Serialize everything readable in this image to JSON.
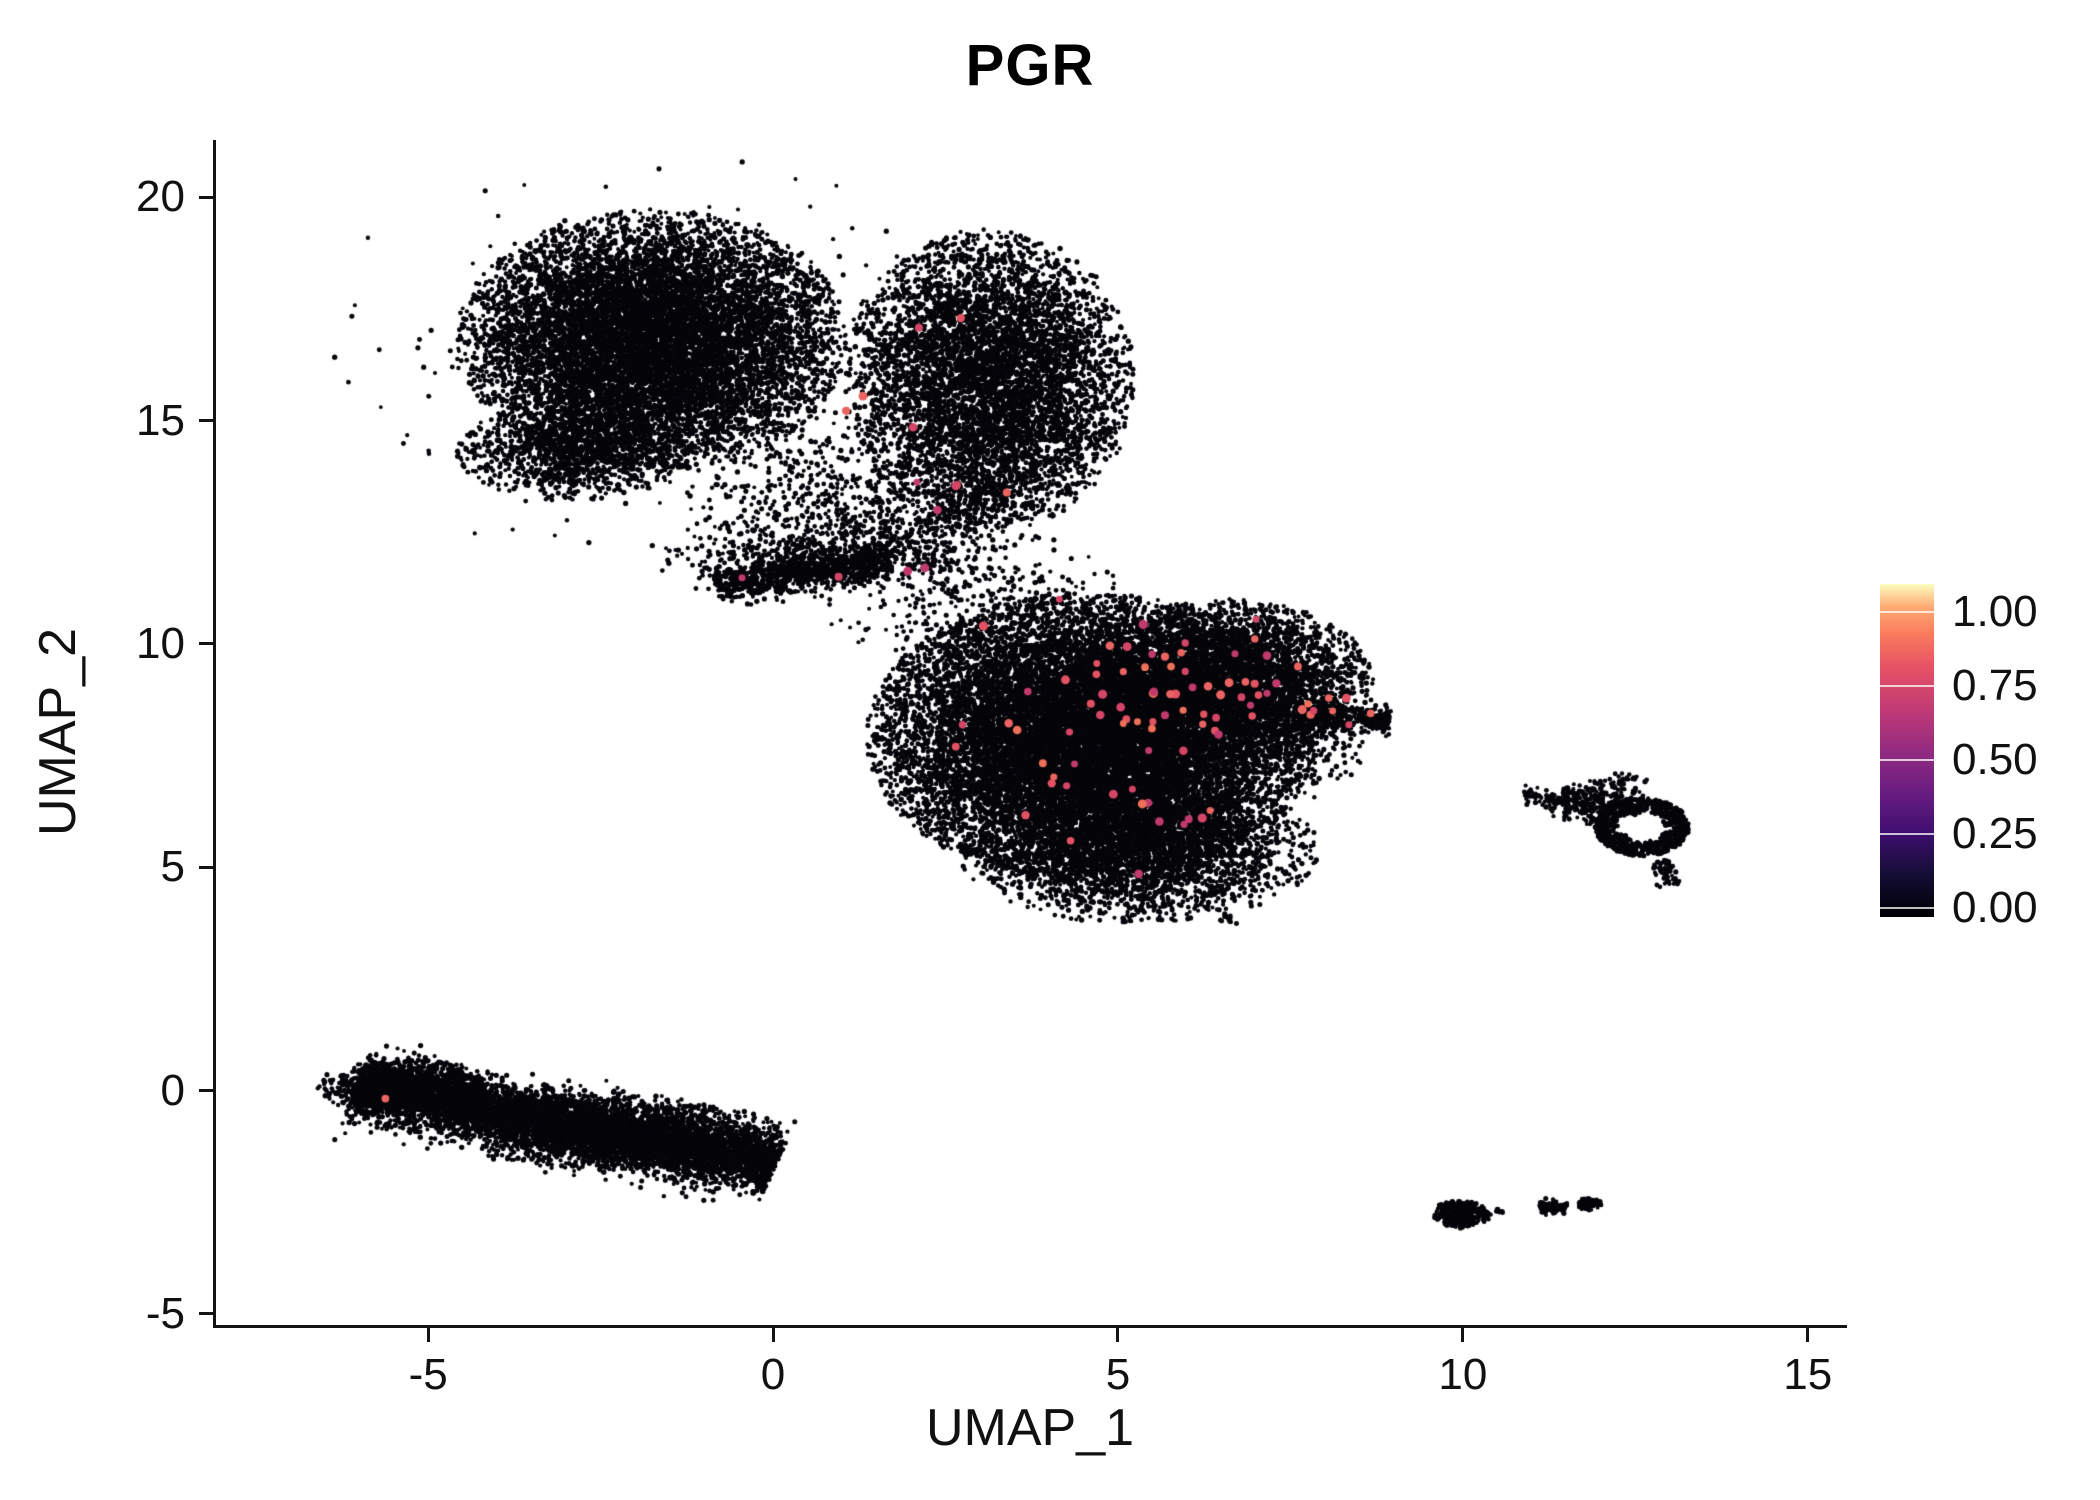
{
  "chart_data": {
    "type": "scatter",
    "title": "PGR",
    "xlabel": "UMAP_1",
    "ylabel": "UMAP_2",
    "xlim": [
      -8.09,
      15.54
    ],
    "ylim": [
      -5.25,
      21.28
    ],
    "x_ticks": [
      -5,
      0,
      5,
      10,
      15
    ],
    "y_ticks": [
      -5,
      0,
      5,
      10,
      15,
      20
    ],
    "grid": false,
    "n_points_approx": 53000,
    "note": "UMAP feature plot of PGR expression: nearly all cells have ~0 expression (black); sparse expressing cells (pink, ~0.5-0.8) are concentrated in the central cluster.",
    "colors": {
      "zero": "#05050a",
      "expressing_palette": [
        "#c13a6d",
        "#d44568",
        "#e25263",
        "#ea6461",
        "#ef7058"
      ]
    },
    "legend": {
      "type": "colorbar",
      "ticks": [
        {
          "label": "1.00",
          "value": 1.0
        },
        {
          "label": "0.75",
          "value": 0.75
        },
        {
          "label": "0.50",
          "value": 0.5
        },
        {
          "label": "0.25",
          "value": 0.25
        },
        {
          "label": "0.00",
          "value": 0.0
        }
      ],
      "gradient": [
        [
          0.0,
          "#000004"
        ],
        [
          0.12,
          "#120d31"
        ],
        [
          0.25,
          "#3d0f6f"
        ],
        [
          0.37,
          "#681c81"
        ],
        [
          0.5,
          "#942c80"
        ],
        [
          0.62,
          "#c03a76"
        ],
        [
          0.75,
          "#e65164"
        ],
        [
          0.85,
          "#f97c5d"
        ],
        [
          0.93,
          "#fea973"
        ],
        [
          1.0,
          "#fcfdbf"
        ]
      ]
    },
    "clusters": [
      {
        "id": "top-left-lobe",
        "kind": "gaussian",
        "cx": -1.75,
        "cy": 16.8,
        "sx": 1.35,
        "sy": 1.4,
        "n": 10000,
        "limit": 2.1
      },
      {
        "id": "top-right-lobe",
        "kind": "gaussian",
        "cx": 3.15,
        "cy": 15.9,
        "sx": 1.05,
        "sy": 1.7,
        "n": 6000,
        "limit": 2.0
      },
      {
        "id": "top-lower-left",
        "kind": "gaussian",
        "cx": -2.9,
        "cy": 14.3,
        "sx": 0.85,
        "sy": 0.55,
        "n": 1200,
        "limit": 2.0
      },
      {
        "id": "top-halo",
        "kind": "gaussian",
        "cx": -1.4,
        "cy": 16.4,
        "sx": 2.0,
        "sy": 1.75,
        "n": 420,
        "limit": 2.75
      },
      {
        "id": "top-bottom-scatter",
        "kind": "gaussian",
        "cx": 0.9,
        "cy": 13.3,
        "sx": 1.05,
        "sy": 0.85,
        "n": 550,
        "limit": 2.4
      },
      {
        "id": "stream-band",
        "kind": "line",
        "x1": -0.85,
        "y1": 11.35,
        "x2": 1.7,
        "y2": 11.85,
        "w": 0.2,
        "n": 950
      },
      {
        "id": "stream-spread",
        "kind": "gaussian",
        "cx": 0.4,
        "cy": 11.95,
        "sx": 1.0,
        "sy": 0.42,
        "n": 420,
        "limit": 2.3
      },
      {
        "id": "stream-diagonal",
        "kind": "line",
        "x1": 1.7,
        "y1": 11.95,
        "x2": 3.3,
        "y2": 13.7,
        "w": 0.45,
        "n": 380
      },
      {
        "id": "stream-to-central",
        "kind": "gaussian",
        "cx": 2.9,
        "cy": 10.9,
        "sx": 0.95,
        "sy": 0.75,
        "n": 380,
        "limit": 2.3
      },
      {
        "id": "central-core",
        "kind": "gaussian",
        "cx": 4.6,
        "cy": 7.9,
        "sx": 1.55,
        "sy": 1.55,
        "n": 15000,
        "limit": 2.1
      },
      {
        "id": "central-upper-right",
        "kind": "gaussian",
        "cx": 6.6,
        "cy": 9.2,
        "sx": 1.05,
        "sy": 0.9,
        "n": 3600,
        "limit": 2.0
      },
      {
        "id": "central-lower",
        "kind": "gaussian",
        "cx": 5.3,
        "cy": 5.4,
        "sx": 1.25,
        "sy": 0.8,
        "n": 3000,
        "limit": 2.1
      },
      {
        "id": "central-right-tail",
        "kind": "line",
        "x1": 7.55,
        "y1": 8.4,
        "x2": 8.95,
        "y2": 8.3,
        "w": 0.16,
        "n": 380
      },
      {
        "id": "central-right-edge",
        "kind": "gaussian",
        "cx": 7.5,
        "cy": 7.8,
        "sx": 0.55,
        "sy": 0.65,
        "n": 350,
        "limit": 2.2
      },
      {
        "id": "central-dangle",
        "kind": "gaussian",
        "cx": 6.6,
        "cy": 3.78,
        "sx": 0.07,
        "sy": 0.08,
        "n": 12,
        "limit": 2.0
      },
      {
        "id": "right-ring",
        "kind": "ring",
        "cx": 12.6,
        "cy": 5.9,
        "r0": 0.3,
        "r1": 0.68,
        "ax": 1.0,
        "ay": 0.95,
        "n": 780
      },
      {
        "id": "right-ring-west-blob",
        "kind": "gaussian",
        "cx": 11.9,
        "cy": 6.45,
        "sx": 0.38,
        "sy": 0.26,
        "n": 300,
        "limit": 2.0
      },
      {
        "id": "right-sparse-trail",
        "kind": "line",
        "x1": 10.85,
        "y1": 6.62,
        "x2": 11.55,
        "y2": 6.5,
        "w": 0.1,
        "n": 46
      },
      {
        "id": "right-bottom-tail",
        "kind": "line",
        "x1": 12.85,
        "y1": 5.15,
        "x2": 13.05,
        "y2": 4.6,
        "w": 0.09,
        "n": 60
      },
      {
        "id": "right-top-specks",
        "kind": "gaussian",
        "cx": 12.35,
        "cy": 6.95,
        "sx": 0.18,
        "sy": 0.08,
        "n": 22,
        "limit": 2.0
      },
      {
        "id": "lower-left-streak",
        "kind": "line",
        "x1": -6.05,
        "y1": 0.12,
        "x2": 0.05,
        "y2": -1.65,
        "w": 0.34,
        "n": 6200
      },
      {
        "id": "lower-left-west-bulge",
        "kind": "gaussian",
        "cx": -5.35,
        "cy": 0.08,
        "sx": 0.6,
        "sy": 0.3,
        "n": 900,
        "limit": 2.1
      },
      {
        "id": "lower-left-mid-bulge",
        "kind": "gaussian",
        "cx": -2.3,
        "cy": -0.95,
        "sx": 1.15,
        "sy": 0.42,
        "n": 1600,
        "limit": 2.1
      },
      {
        "id": "bottom-blob",
        "kind": "gaussian",
        "cx": 10.0,
        "cy": -2.78,
        "sx": 0.22,
        "sy": 0.17,
        "n": 280,
        "limit": 1.9
      },
      {
        "id": "bottom-blob-bump",
        "kind": "gaussian",
        "cx": 9.8,
        "cy": -2.6,
        "sx": 0.09,
        "sy": 0.06,
        "n": 45,
        "limit": 1.9
      },
      {
        "id": "bottom-dash-1",
        "kind": "line",
        "x1": 11.12,
        "y1": -2.62,
        "x2": 11.52,
        "y2": -2.58,
        "w": 0.06,
        "n": 90
      },
      {
        "id": "bottom-dash-2",
        "kind": "line",
        "x1": 11.68,
        "y1": -2.56,
        "x2": 12.0,
        "y2": -2.52,
        "w": 0.06,
        "n": 75
      },
      {
        "id": "bottom-speck",
        "kind": "gaussian",
        "cx": 10.55,
        "cy": -2.7,
        "sx": 0.05,
        "sy": 0.035,
        "n": 7,
        "limit": 1.8
      }
    ],
    "expressing_cells": [
      {
        "id": "central-upper-expr",
        "kind": "gaussian",
        "cx": 6.1,
        "cy": 8.9,
        "sx": 1.15,
        "sy": 0.85,
        "n": 48,
        "limit": 2.0
      },
      {
        "id": "central-left-expr",
        "kind": "gaussian",
        "cx": 4.5,
        "cy": 8.0,
        "sx": 1.0,
        "sy": 1.2,
        "n": 18,
        "limit": 2.0
      },
      {
        "id": "central-lower-expr",
        "kind": "gaussian",
        "cx": 5.8,
        "cy": 6.4,
        "sx": 1.1,
        "sy": 0.7,
        "n": 10,
        "limit": 2.0
      },
      {
        "id": "tail-expr",
        "kind": "gaussian",
        "cx": 8.1,
        "cy": 8.45,
        "sx": 0.4,
        "sy": 0.2,
        "n": 7,
        "limit": 1.8
      },
      {
        "id": "stream-expr",
        "kind": "gaussian",
        "cx": 2.4,
        "cy": 12.6,
        "sx": 0.7,
        "sy": 1.0,
        "n": 6,
        "limit": 1.8
      },
      {
        "id": "top-cluster-expr",
        "kind": "gaussian",
        "cx": 1.9,
        "cy": 16.2,
        "sx": 0.7,
        "sy": 1.4,
        "n": 5,
        "limit": 1.8
      },
      {
        "id": "singleton-expr",
        "kind": "points",
        "pts": [
          [
            -5.62,
            -0.18
          ],
          [
            0.95,
            11.5
          ],
          [
            -0.45,
            11.48
          ],
          [
            2.2,
            11.7
          ],
          [
            5.3,
            4.85
          ],
          [
            3.05,
            10.4
          ],
          [
            7.0,
            10.55
          ],
          [
            4.15,
            11.0
          ]
        ]
      }
    ]
  }
}
